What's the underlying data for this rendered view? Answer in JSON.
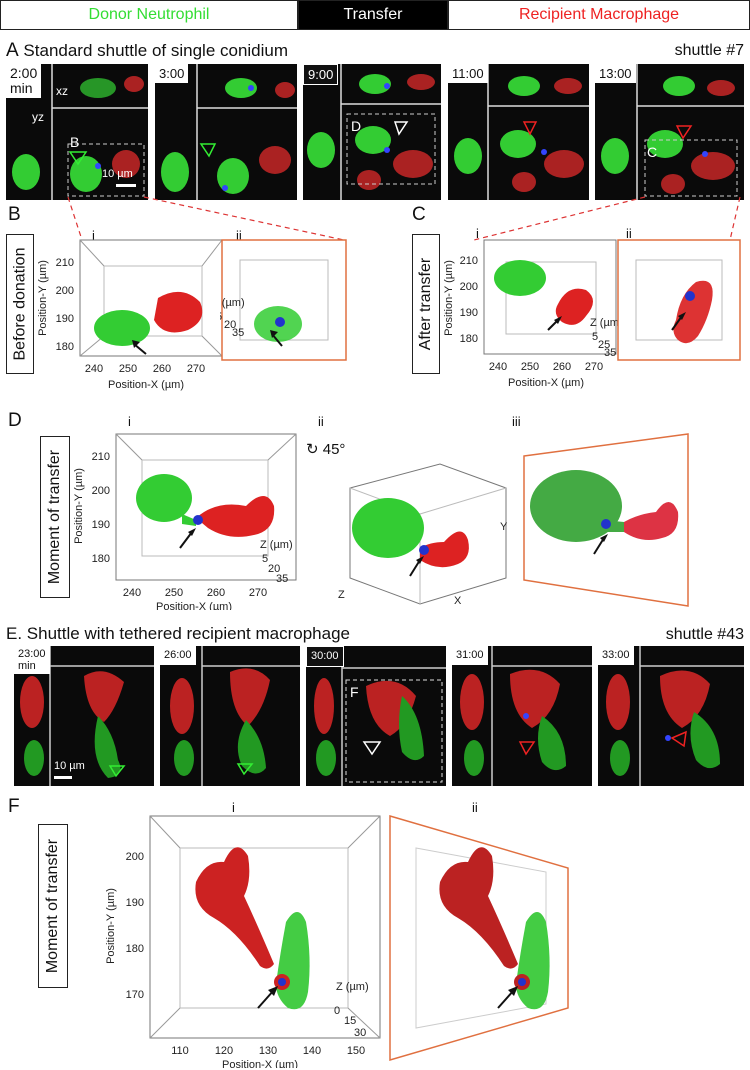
{
  "legend": {
    "donor": "Donor Neutrophil",
    "transfer": "Transfer",
    "recipient": "Recipient Macrophage",
    "donor_color": "#33dd33",
    "transfer_bg": "#000000",
    "recipient_color": "#ee2222"
  },
  "panelA": {
    "letter": "A",
    "title": "Standard shuttle of single conidium",
    "shuttle": "shuttle #7",
    "times": [
      "2:00",
      "3:00",
      "9:00",
      "11:00",
      "13:00"
    ],
    "min_label": "min",
    "xz_label": "xz",
    "yz_label": "yz",
    "scale": "10 µm",
    "box_B": "B",
    "box_D": "D",
    "box_C": "C"
  },
  "panelB": {
    "letter": "B",
    "side_label": "Before donation",
    "sub_i": "i",
    "sub_ii": "ii",
    "ylabel": "Position-Y (µm)",
    "xlabel": "Position-X (µm)",
    "yticks": [
      "210",
      "200",
      "190",
      "180"
    ],
    "xticks": [
      "240",
      "250",
      "260",
      "270"
    ],
    "zlabel": "Z (µm)",
    "zticks": [
      "5",
      "20",
      "35"
    ]
  },
  "panelC": {
    "letter": "C",
    "side_label": "After transfer",
    "sub_i": "i",
    "sub_ii": "ii",
    "ylabel": "Position-Y (µm)",
    "xlabel": "Position-X (µm)",
    "yticks": [
      "210",
      "200",
      "190",
      "180"
    ],
    "xticks": [
      "240",
      "250",
      "260",
      "270"
    ],
    "zlabel": "Z (µm)",
    "zticks": [
      "5",
      "25",
      "35"
    ]
  },
  "panelD": {
    "letter": "D",
    "side_label": "Moment of transfer",
    "sub_i": "i",
    "sub_ii": "ii",
    "sub_iii": "iii",
    "rotation": "45°",
    "ylabel": "Position-Y (µm)",
    "xlabel": "Position-X (µm)",
    "yticks": [
      "210",
      "200",
      "190",
      "180"
    ],
    "xticks": [
      "240",
      "250",
      "260",
      "270"
    ],
    "zlabel": "Z (µm)",
    "zticks": [
      "5",
      "20",
      "35"
    ],
    "axis_z": "Z",
    "axis_x": "X",
    "axis_y": "Y"
  },
  "panelE": {
    "letter": "E.",
    "title": "Shuttle with tethered recipient macrophage",
    "shuttle": "shuttle #43",
    "times": [
      "23:00",
      "26:00",
      "30:00",
      "31:00",
      "33:00"
    ],
    "min_label": "min",
    "scale": "10 µm",
    "box_F": "F"
  },
  "panelF": {
    "letter": "F",
    "side_label": "Moment of transfer",
    "sub_i": "i",
    "sub_ii": "ii",
    "ylabel": "Position-Y (µm)",
    "xlabel": "Position-X (µm)",
    "yticks": [
      "200",
      "190",
      "180",
      "170"
    ],
    "xticks": [
      "110",
      "120",
      "130",
      "140",
      "150"
    ],
    "zlabel": "Z (µm)",
    "zticks": [
      "0",
      "15",
      "30"
    ]
  }
}
